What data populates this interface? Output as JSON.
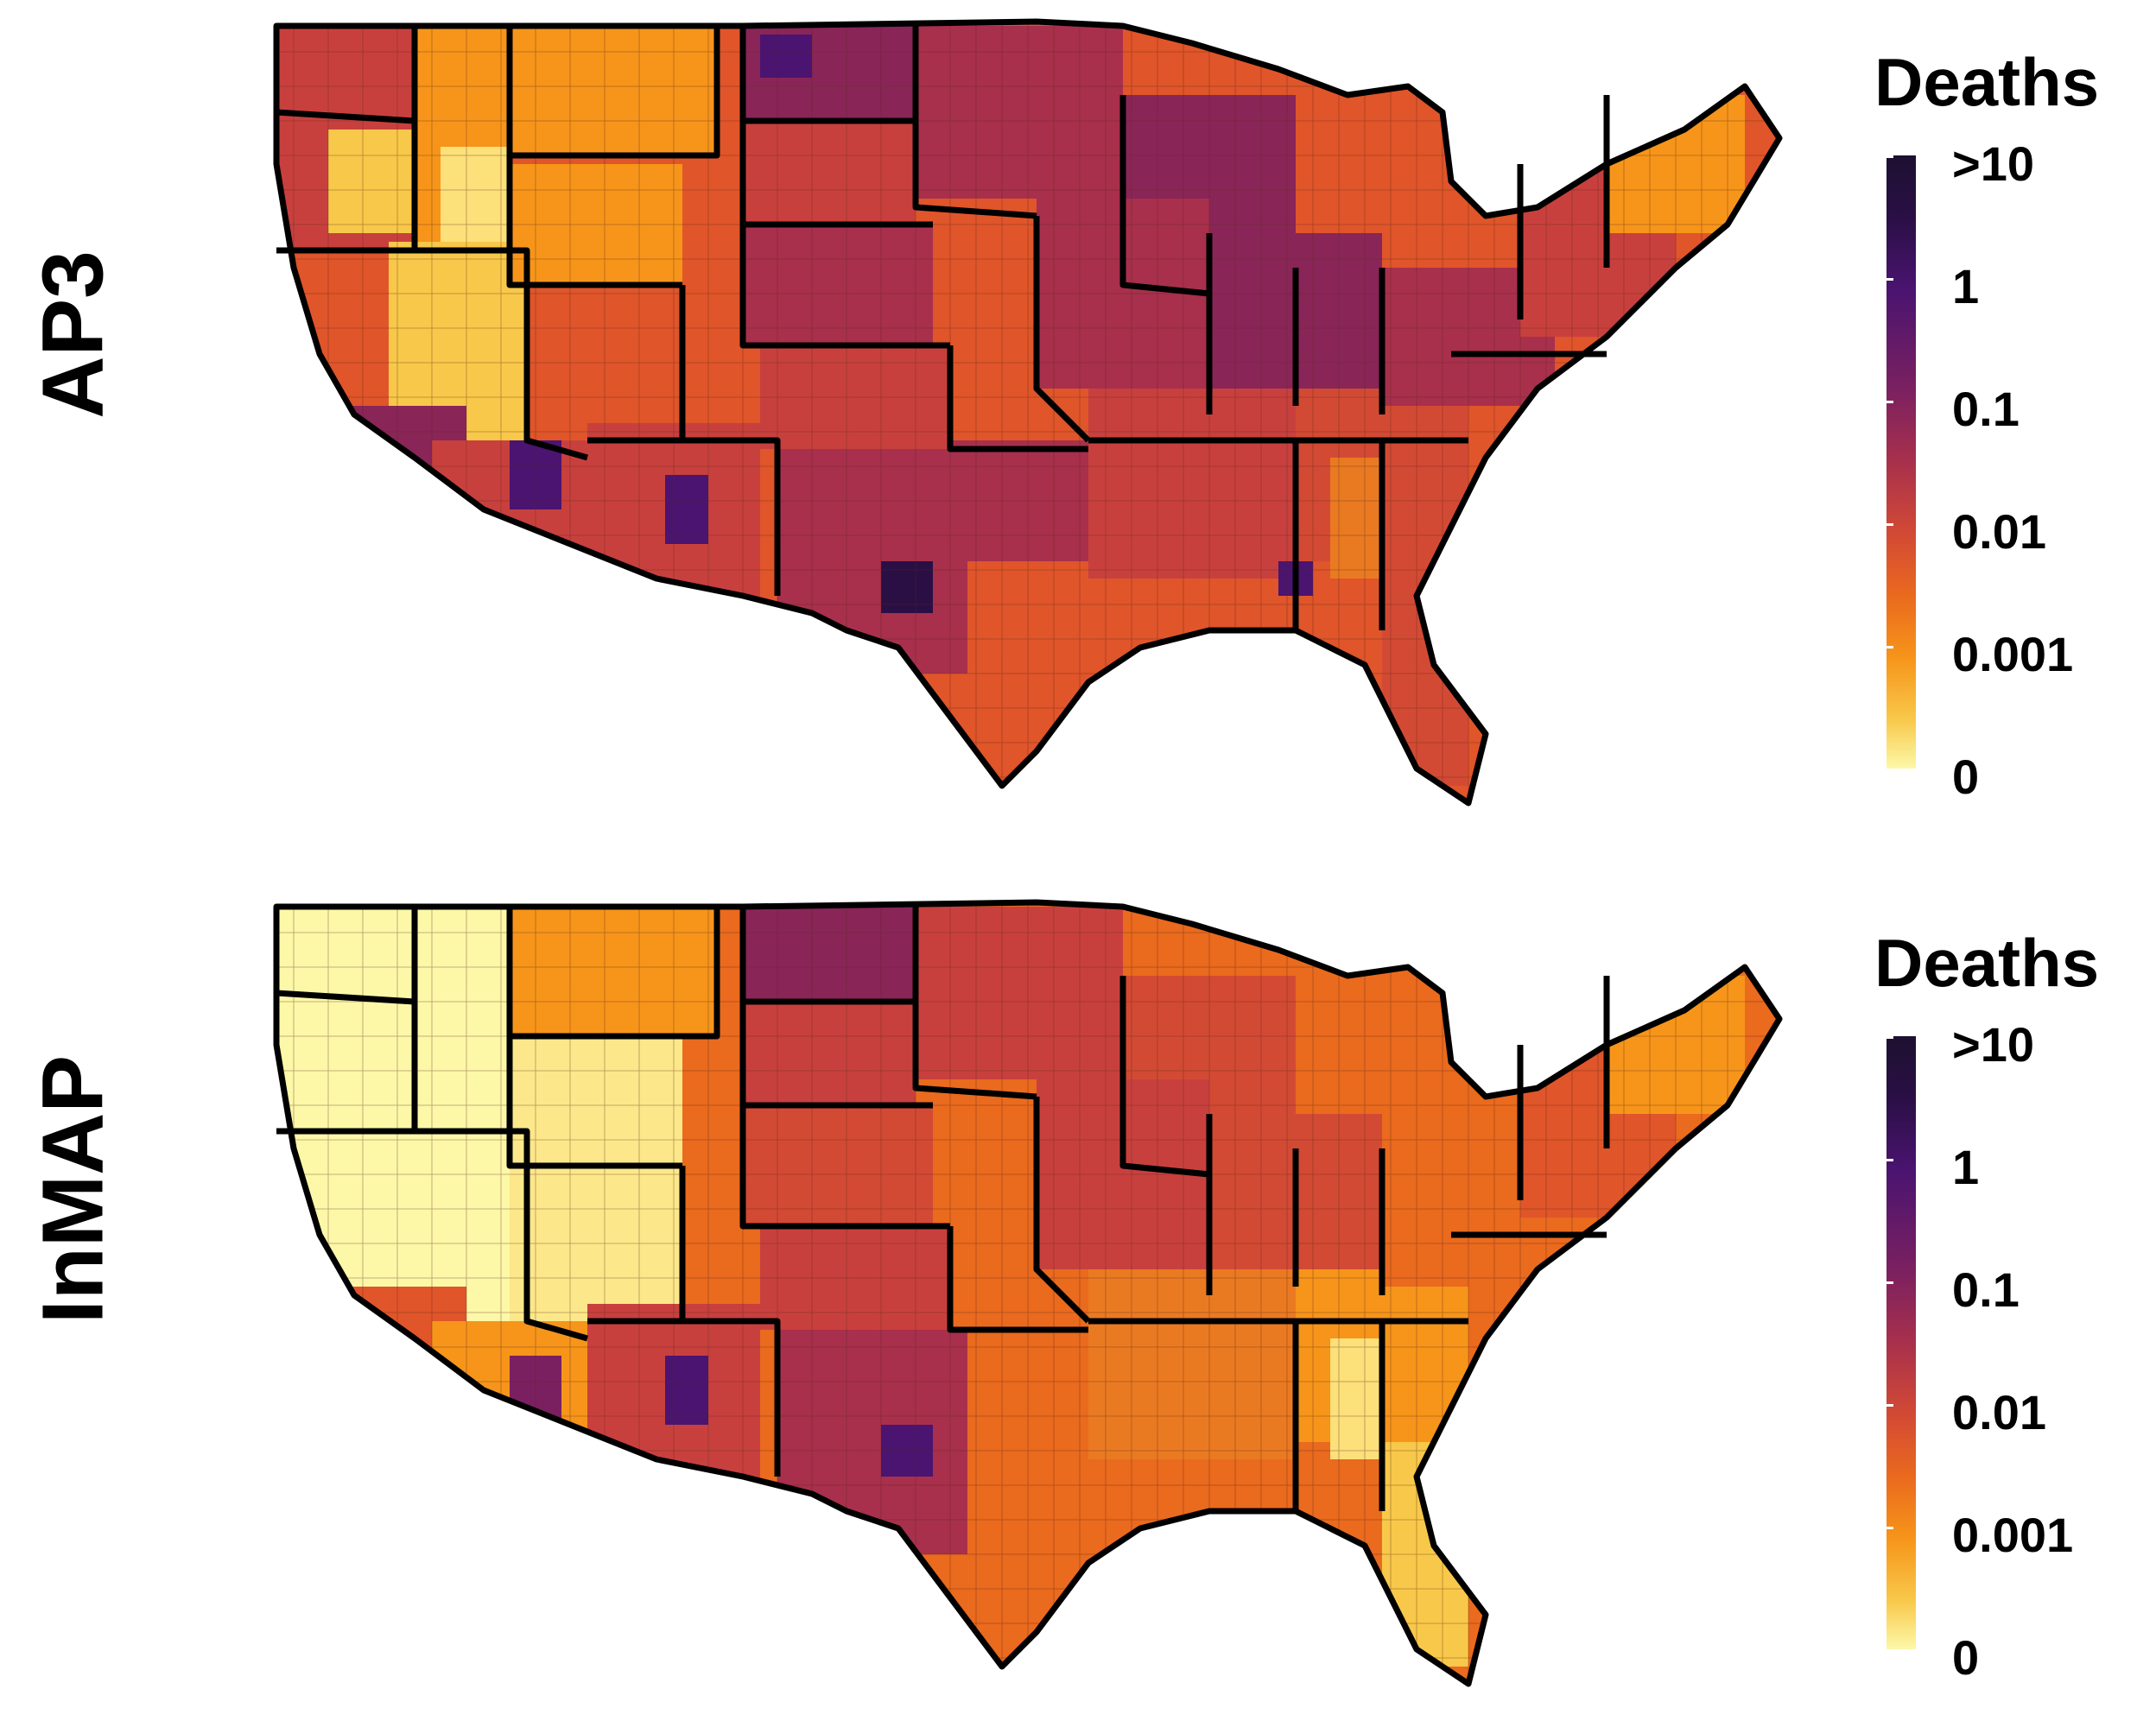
{
  "figure": {
    "panels": [
      {
        "id": "ap3",
        "row_label": "AP3",
        "legend": {
          "title": "Deaths",
          "ticks": [
            ">10",
            "1",
            "0.1",
            "0.01",
            "0.001",
            "0"
          ]
        }
      },
      {
        "id": "inmap",
        "row_label": "InMAP",
        "legend": {
          "title": "Deaths",
          "ticks": [
            ">10",
            "1",
            "0.1",
            "0.01",
            "0.001",
            "0"
          ]
        }
      }
    ],
    "colors": {
      "max": "#1d1030",
      "high": "#4a1470",
      "mid_high": "#a8304c",
      "mid": "#e0552a",
      "mid_low": "#f6951a",
      "low": "#f8c84a",
      "min": "#fcf8a8",
      "border": "#000000",
      "county_line": "#5a2a1a"
    }
  }
}
